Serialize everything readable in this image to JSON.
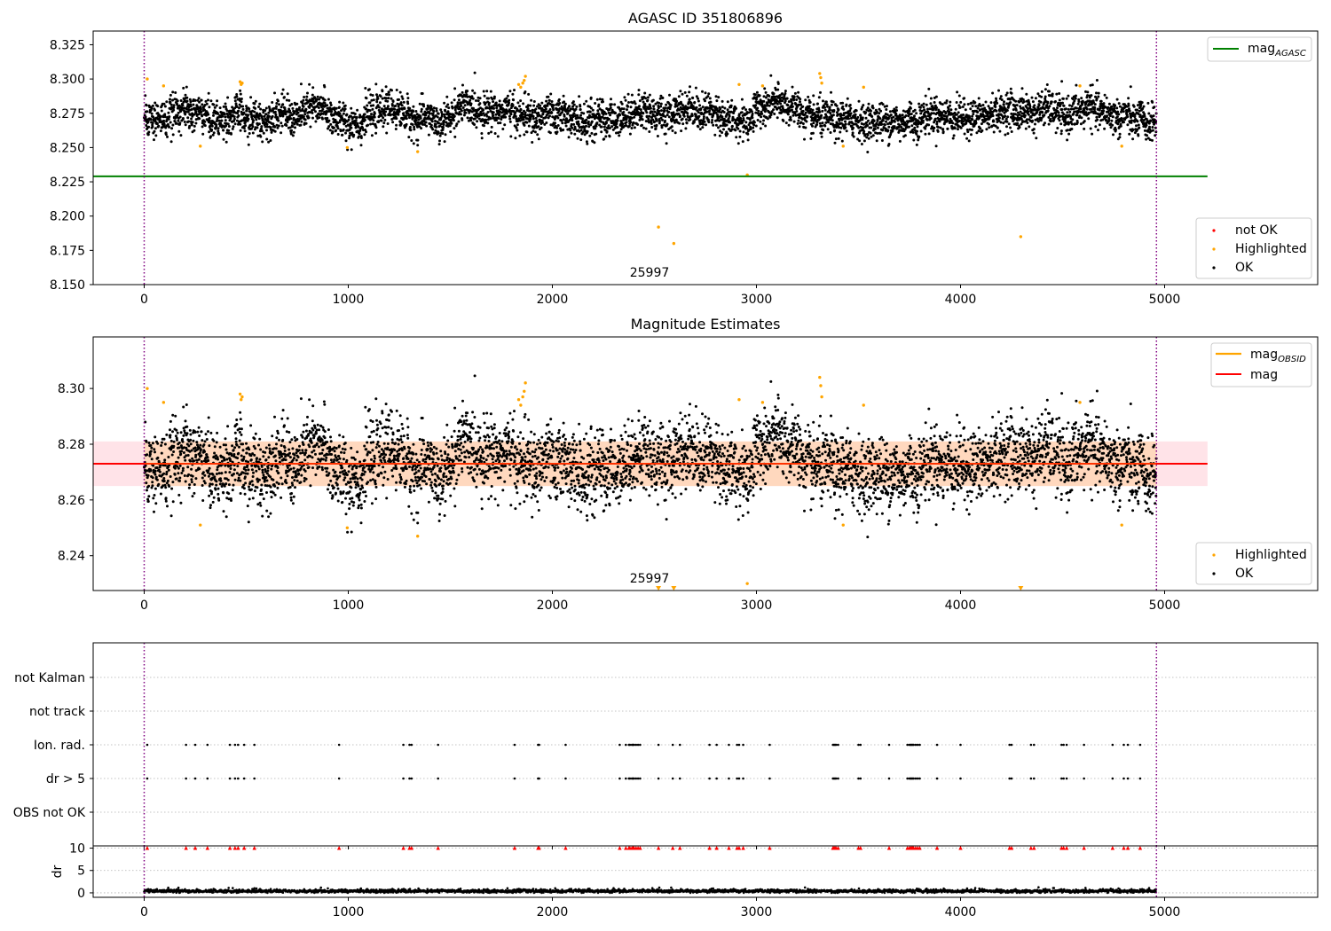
{
  "figure": {
    "title_top": "AGASC ID 351806896",
    "title_middle": "Magnitude Estimates",
    "obsid_label": "25997"
  },
  "colors": {
    "ok": "#000000",
    "highlighted": "#ffa500",
    "not_ok": "#ff0000",
    "agasc_line": "#008000",
    "mag_line": "#ff0000",
    "obsid_line": "#ffa500",
    "band_fill": "#ffc0cb",
    "obs_boundary": "#800080",
    "grid": "#b0b0b0"
  },
  "chart_data": [
    {
      "type": "scatter",
      "title": "AGASC ID 351806896",
      "xlim": [
        -250,
        5750
      ],
      "ylim": [
        8.15,
        8.335
      ],
      "xticks": [
        0,
        1000,
        2000,
        3000,
        4000,
        5000
      ],
      "yticks": [
        8.15,
        8.175,
        8.2,
        8.225,
        8.25,
        8.275,
        8.3,
        8.325
      ],
      "legend_lines": [
        {
          "name": "mag_AGASC",
          "label_main": "mag",
          "label_sub": "AGASC",
          "color": "#008000"
        }
      ],
      "legend_points": [
        {
          "name": "not OK",
          "color": "#ff0000"
        },
        {
          "name": "Highlighted",
          "color": "#ffa500"
        },
        {
          "name": "OK",
          "color": "#000000"
        }
      ],
      "mag_agasc": 8.229,
      "mag_agasc_xrange": [
        -250,
        5210
      ],
      "obs_boundaries": [
        0,
        4960
      ],
      "ok_series": {
        "n_points": 4960,
        "baseline": 8.273,
        "scatter": 0.0065
      },
      "highlighted_points": [
        {
          "x": 15,
          "y": 8.3
        },
        {
          "x": 95,
          "y": 8.295
        },
        {
          "x": 275,
          "y": 8.251
        },
        {
          "x": 470,
          "y": 8.298
        },
        {
          "x": 475,
          "y": 8.296
        },
        {
          "x": 480,
          "y": 8.297
        },
        {
          "x": 995,
          "y": 8.25
        },
        {
          "x": 1340,
          "y": 8.247
        },
        {
          "x": 1835,
          "y": 8.296
        },
        {
          "x": 1845,
          "y": 8.294
        },
        {
          "x": 1855,
          "y": 8.297
        },
        {
          "x": 1862,
          "y": 8.299
        },
        {
          "x": 1868,
          "y": 8.302
        },
        {
          "x": 2520,
          "y": 8.192
        },
        {
          "x": 2595,
          "y": 8.18
        },
        {
          "x": 2915,
          "y": 8.296
        },
        {
          "x": 2955,
          "y": 8.23
        },
        {
          "x": 3030,
          "y": 8.295
        },
        {
          "x": 3310,
          "y": 8.304
        },
        {
          "x": 3315,
          "y": 8.301
        },
        {
          "x": 3320,
          "y": 8.297
        },
        {
          "x": 3425,
          "y": 8.251
        },
        {
          "x": 3525,
          "y": 8.294
        },
        {
          "x": 4295,
          "y": 8.185
        },
        {
          "x": 4585,
          "y": 8.295
        },
        {
          "x": 4790,
          "y": 8.251
        }
      ]
    },
    {
      "type": "scatter",
      "title": "Magnitude Estimates",
      "xlim": [
        -250,
        5750
      ],
      "ylim": [
        8.2275,
        8.3185
      ],
      "xticks": [
        0,
        1000,
        2000,
        3000,
        4000,
        5000
      ],
      "yticks": [
        8.24,
        8.26,
        8.28,
        8.3
      ],
      "legend_lines": [
        {
          "name": "mag_OBSID",
          "label_main": "mag",
          "label_sub": "OBSID",
          "color": "#ffa500"
        },
        {
          "name": "mag",
          "label_main": "mag",
          "label_sub": "",
          "color": "#ff0000"
        }
      ],
      "legend_points": [
        {
          "name": "Highlighted",
          "color": "#ffa500"
        },
        {
          "name": "OK",
          "color": "#000000"
        }
      ],
      "mag": 8.273,
      "mag_band": [
        8.265,
        8.281
      ],
      "mag_xrange": [
        -250,
        5210
      ],
      "obs_boundaries": [
        0,
        4960
      ],
      "lower_limit_markers": [
        2520,
        2595,
        4295
      ],
      "ok_series": {
        "n_points": 4960,
        "baseline": 8.273,
        "scatter": 0.0065
      }
    },
    {
      "type": "scatter",
      "xlim": [
        -250,
        5750
      ],
      "categories": [
        "not Kalman",
        "not track",
        "Ion. rad.",
        "dr > 5",
        "OBS not OK"
      ],
      "flag_x": [
        15,
        205,
        250,
        310,
        420,
        445,
        460,
        490,
        540,
        955,
        1270,
        1300,
        1310,
        1440,
        1815,
        1930,
        1935,
        2065,
        2330,
        2360,
        2375,
        2380,
        2390,
        2395,
        2400,
        2410,
        2420,
        2430,
        2520,
        2590,
        2625,
        2770,
        2805,
        2865,
        2905,
        2915,
        2935,
        3065,
        3375,
        3380,
        3385,
        3390,
        3400,
        3500,
        3510,
        3650,
        3740,
        3750,
        3755,
        3760,
        3765,
        3770,
        3780,
        3790,
        3800,
        3885,
        4000,
        4240,
        4250,
        4345,
        4360,
        4495,
        4505,
        4520,
        4605,
        4745,
        4800,
        4820,
        4880
      ],
      "obs_boundaries": [
        0,
        4960
      ]
    },
    {
      "type": "scatter",
      "ylabel": "dr",
      "xlim": [
        -250,
        5750
      ],
      "ylim": [
        -1,
        10.5
      ],
      "xticks": [
        0,
        1000,
        2000,
        3000,
        4000,
        5000
      ],
      "yticks": [
        0,
        5,
        10
      ],
      "clip_value": 10,
      "dr_baseline": 0.4,
      "obs_boundaries": [
        0,
        4960
      ]
    }
  ]
}
